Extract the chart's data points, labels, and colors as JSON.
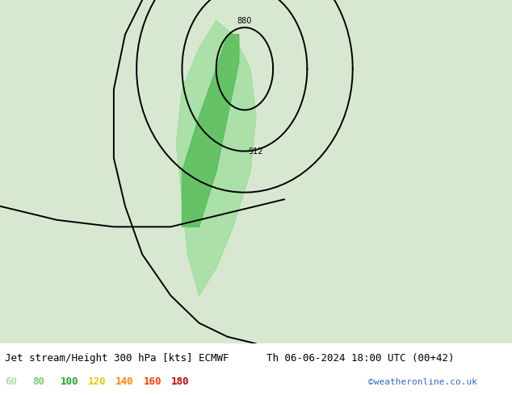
{
  "title_left": "Jet stream/Height 300 hPa [kts] ECMWF",
  "title_right": "Th 06-06-2024 18:00 UTC (00+42)",
  "credit": "©weatheronline.co.uk",
  "legend_values": [
    "60",
    "80",
    "100",
    "120",
    "140",
    "160",
    "180"
  ],
  "legend_colors": [
    "#aaddaa",
    "#77cc77",
    "#22aa22",
    "#ddcc00",
    "#ff8800",
    "#ff4400",
    "#cc0000"
  ],
  "figsize": [
    6.34,
    4.9
  ],
  "dpi": 100,
  "title_fontsize": 9,
  "legend_fontsize": 9,
  "credit_fontsize": 8,
  "map_extent": [
    -40,
    50,
    25,
    75
  ],
  "land_color": "#d8e8d0",
  "sea_color": "#e8e8e8",
  "coast_color": "#999999",
  "coast_lw": 0.5,
  "contour_color": "#000000",
  "contour_lw": 1.4,
  "wind_colors": {
    "60": "#c8eec8",
    "80": "#99dd99",
    "100": "#55bb55",
    "120": "#228822",
    "140": "#eecc00",
    "160": "#ff8800",
    "180": "#ff3300"
  }
}
